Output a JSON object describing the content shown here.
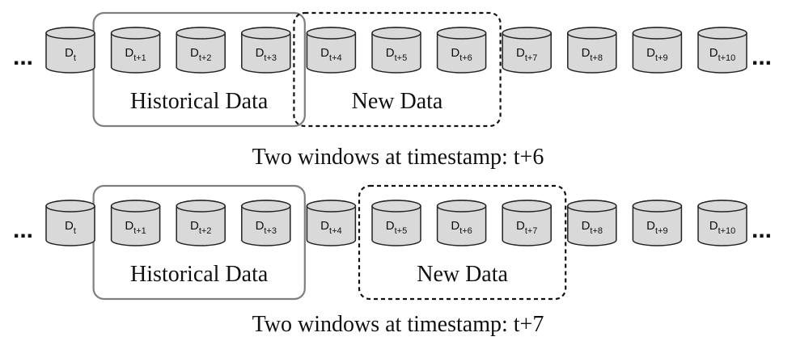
{
  "ellipsis": "...",
  "panels": [
    {
      "cylinders": [
        {
          "base": "D",
          "sub": "t"
        },
        {
          "base": "D",
          "sub": "t+1"
        },
        {
          "base": "D",
          "sub": "t+2"
        },
        {
          "base": "D",
          "sub": "t+3"
        },
        {
          "base": "D",
          "sub": "t+4"
        },
        {
          "base": "D",
          "sub": "t+5"
        },
        {
          "base": "D",
          "sub": "t+6"
        },
        {
          "base": "D",
          "sub": "t+7"
        },
        {
          "base": "D",
          "sub": "t+8"
        },
        {
          "base": "D",
          "sub": "t+9"
        },
        {
          "base": "D",
          "sub": "t+10"
        }
      ],
      "historical_window": {
        "label": "Historical Data",
        "from": 1,
        "to": 3
      },
      "new_window": {
        "label": "New Data",
        "from": 4,
        "to": 6
      },
      "caption": "Two windows at timestamp: t+6"
    },
    {
      "cylinders": [
        {
          "base": "D",
          "sub": "t"
        },
        {
          "base": "D",
          "sub": "t+1"
        },
        {
          "base": "D",
          "sub": "t+2"
        },
        {
          "base": "D",
          "sub": "t+3"
        },
        {
          "base": "D",
          "sub": "t+4"
        },
        {
          "base": "D",
          "sub": "t+5"
        },
        {
          "base": "D",
          "sub": "t+6"
        },
        {
          "base": "D",
          "sub": "t+7"
        },
        {
          "base": "D",
          "sub": "t+8"
        },
        {
          "base": "D",
          "sub": "t+9"
        },
        {
          "base": "D",
          "sub": "t+10"
        }
      ],
      "historical_window": {
        "label": "Historical Data",
        "from": 1,
        "to": 3
      },
      "new_window": {
        "label": "New Data",
        "from": 5,
        "to": 7
      },
      "caption": "Two windows at timestamp: t+7"
    }
  ],
  "colors": {
    "cylinder_fill": "#d9d9d9",
    "cylinder_stroke": "#222222",
    "historical_border": "#7f7f7f",
    "new_border": "#111111"
  }
}
